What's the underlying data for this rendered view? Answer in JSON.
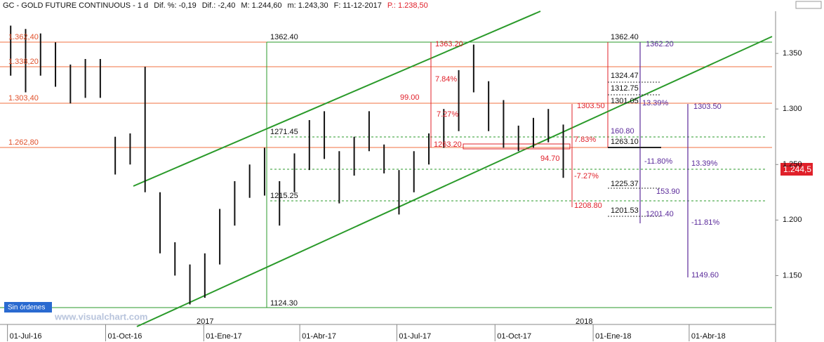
{
  "chart_data": {
    "type": "hilo",
    "header": [
      "GC - GOLD FUTURE CONTINUOUS -  1 d",
      "Dif. %: -0,19",
      "Dif.: -2,40",
      "M: 1.244,60",
      "m: 1.243,30",
      "F: 11-12-2017",
      "P.: 1.238,50"
    ],
    "color": "#111111",
    "x": [
      "2016-07-04",
      "2016-07-18",
      "2016-08-01",
      "2016-08-15",
      "2016-08-29",
      "2016-09-12",
      "2016-09-26",
      "2016-10-10",
      "2016-10-24",
      "2016-11-07",
      "2016-11-21",
      "2016-12-05",
      "2016-12-19",
      "2017-01-02",
      "2017-01-16",
      "2017-01-30",
      "2017-02-13",
      "2017-02-27",
      "2017-03-13",
      "2017-03-27",
      "2017-04-10",
      "2017-04-24",
      "2017-05-08",
      "2017-05-22",
      "2017-06-05",
      "2017-06-19",
      "2017-07-03",
      "2017-07-17",
      "2017-07-31",
      "2017-08-14",
      "2017-08-28",
      "2017-09-11",
      "2017-09-25",
      "2017-10-09",
      "2017-10-23",
      "2017-11-06",
      "2017-11-20",
      "2017-12-04"
    ],
    "high": [
      1375,
      1372,
      1368,
      1360,
      1340,
      1345,
      1345,
      1275,
      1278,
      1338,
      1225,
      1180,
      1160,
      1170,
      1210,
      1235,
      1250,
      1265,
      1235,
      1260,
      1290,
      1298,
      1262,
      1275,
      1298,
      1268,
      1245,
      1262,
      1278,
      1300,
      1335,
      1358,
      1325,
      1308,
      1285,
      1292,
      1300,
      1286
    ],
    "low": [
      1330,
      1315,
      1330,
      1320,
      1305,
      1310,
      1310,
      1241,
      1250,
      1225,
      1170,
      1150,
      1124,
      1130,
      1160,
      1195,
      1220,
      1222,
      1195,
      1225,
      1245,
      1255,
      1215,
      1240,
      1262,
      1242,
      1205,
      1225,
      1250,
      1265,
      1280,
      1315,
      1280,
      1265,
      1262,
      1265,
      1270,
      1238
    ],
    "xlim": [
      "2016-06-24",
      "2018-06-21"
    ],
    "xticks": [
      {
        "value": "2016-07-01",
        "label": "01-Jul-16"
      },
      {
        "value": "2016-10-01",
        "label": "01-Oct-16"
      },
      {
        "value": "2017-01-01",
        "label": "01-Ene-17"
      },
      {
        "value": "2017-04-01",
        "label": "01-Abr-17"
      },
      {
        "value": "2017-07-01",
        "label": "01-Jul-17"
      },
      {
        "value": "2017-10-01",
        "label": "01-Oct-17"
      },
      {
        "value": "2018-01-01",
        "label": "01-Ene-18"
      },
      {
        "value": "2018-04-01",
        "label": "01-Abr-18"
      }
    ],
    "year_labels": [
      "2017",
      "2018"
    ],
    "ylim": [
      1106,
      1388
    ],
    "yticks": [
      {
        "value": 1150,
        "label": "1.150"
      },
      {
        "value": 1200,
        "label": "1.200"
      },
      {
        "value": 1250,
        "label": "1.250"
      },
      {
        "value": 1300,
        "label": "1.300"
      },
      {
        "value": 1350,
        "label": "1.350"
      }
    ],
    "level_labels": [
      "1.362,40",
      "1.338,20",
      "1.303,40",
      "1.262,80"
    ],
    "annotations": [
      "1362.40",
      "1124.30",
      "1271.45",
      "1215.25",
      "1363.20",
      "99.00",
      "7.84%",
      "7.27%",
      "1263.20",
      "1303.50",
      "7.83%",
      "94.70",
      "-7.27%",
      "1208.80",
      "1362.40",
      "1324.47",
      "1312.75",
      "1301.05",
      "160.80",
      "1263.10",
      "1225.37",
      "153.90",
      "1201.53",
      "1201.40",
      "1362.20",
      "13.39%",
      "-11.80%",
      "1303.50",
      "13.39%",
      "-11.81%",
      "1149.60"
    ],
    "last_price_label": "1.244,5",
    "status": "Sin órdenes",
    "watermark": "www.visualchart.com"
  }
}
